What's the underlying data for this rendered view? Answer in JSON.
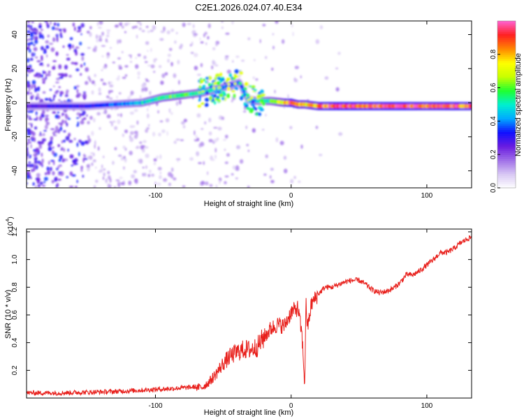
{
  "title": "C2E1.2026.024.07.40.E34",
  "chart_data": [
    {
      "type": "heatmap",
      "name": "spectrogram",
      "xlabel": "Height of straight line (km)",
      "ylabel": "Frequency (Hz)",
      "xlim": [
        -195,
        133
      ],
      "ylim": [
        -50,
        48
      ],
      "x_ticks": [
        -100,
        0,
        100
      ],
      "x_tick_labels": [
        "-100",
        "0",
        "100"
      ],
      "y_ticks": [
        -40,
        -20,
        0,
        20,
        40
      ],
      "y_tick_labels": [
        "-40",
        "-20",
        "0",
        "20",
        "40"
      ],
      "colorbar": {
        "label": "Normalized spectral amplitude",
        "range": [
          0,
          1
        ],
        "ticks": [
          0.0,
          0.2,
          0.4,
          0.6,
          0.8
        ],
        "tick_labels": [
          "0.0",
          "0.2",
          "0.4",
          "0.6",
          "0.8"
        ],
        "colors": [
          "#ffffff",
          "#d8c8f4",
          "#a070e8",
          "#6a1ce0",
          "#1010ff",
          "#00aaff",
          "#00f0d0",
          "#20ff30",
          "#c8ff00",
          "#ffff00",
          "#ff8800",
          "#ff2020",
          "#ff60d0"
        ]
      },
      "ridge": {
        "x": [
          -195,
          -170,
          -150,
          -130,
          -110,
          -95,
          -85,
          -75,
          -65,
          -55,
          -45,
          -38,
          -32,
          -25,
          -15,
          -5,
          0,
          5,
          10,
          20,
          40,
          60,
          80,
          100,
          120,
          133
        ],
        "freq": [
          -2,
          -2,
          -2,
          -1,
          0,
          3,
          4,
          5,
          6,
          8,
          10,
          12,
          2,
          1,
          1,
          0,
          0,
          -1,
          -1,
          -2,
          -2,
          -2,
          -2,
          -2,
          -2,
          -2
        ],
        "amplitude": [
          0.25,
          0.3,
          0.3,
          0.38,
          0.45,
          0.55,
          0.6,
          0.55,
          0.5,
          0.45,
          0.4,
          0.35,
          0.4,
          0.45,
          0.55,
          0.75,
          0.9,
          0.8,
          0.75,
          0.85,
          0.95,
          0.9,
          0.95,
          0.85,
          0.9,
          0.85
        ]
      }
    },
    {
      "type": "line",
      "name": "snr",
      "xlabel": "Height of straight line (km)",
      "ylabel": "SNR (10 * v/v)",
      "y_exponent_label": "(x10",
      "y_exponent_power": "4",
      "y_exponent_close": ")",
      "xlim": [
        -195,
        133
      ],
      "ylim": [
        0,
        1.22
      ],
      "x_ticks": [
        -100,
        0,
        100
      ],
      "x_tick_labels": [
        "-100",
        "0",
        "100"
      ],
      "y_ticks": [
        0.2,
        0.4,
        0.6,
        0.8,
        1.0,
        1.2
      ],
      "y_tick_labels": [
        "0.2",
        "0.4",
        "0.6",
        "0.8",
        "1.0",
        "1.2"
      ],
      "color": "#e8201c",
      "series": [
        {
          "name": "SNR",
          "x": [
            -195,
            -170,
            -150,
            -130,
            -110,
            -90,
            -75,
            -65,
            -60,
            -55,
            -50,
            -45,
            -40,
            -35,
            -30,
            -25,
            -20,
            -15,
            -10,
            -5,
            0,
            5,
            8,
            10,
            11,
            12,
            15,
            20,
            25,
            30,
            35,
            40,
            45,
            50,
            55,
            60,
            65,
            70,
            75,
            80,
            85,
            90,
            95,
            100,
            105,
            110,
            115,
            120,
            125,
            130,
            133
          ],
          "y": [
            0.03,
            0.03,
            0.035,
            0.04,
            0.05,
            0.06,
            0.07,
            0.08,
            0.12,
            0.18,
            0.25,
            0.3,
            0.33,
            0.35,
            0.35,
            0.37,
            0.44,
            0.5,
            0.53,
            0.52,
            0.62,
            0.65,
            0.45,
            0.1,
            0.7,
            0.5,
            0.68,
            0.75,
            0.8,
            0.8,
            0.82,
            0.84,
            0.85,
            0.85,
            0.82,
            0.78,
            0.76,
            0.77,
            0.79,
            0.83,
            0.89,
            0.89,
            0.92,
            0.96,
            1.0,
            1.05,
            1.05,
            1.08,
            1.12,
            1.15,
            1.16
          ]
        }
      ]
    }
  ]
}
